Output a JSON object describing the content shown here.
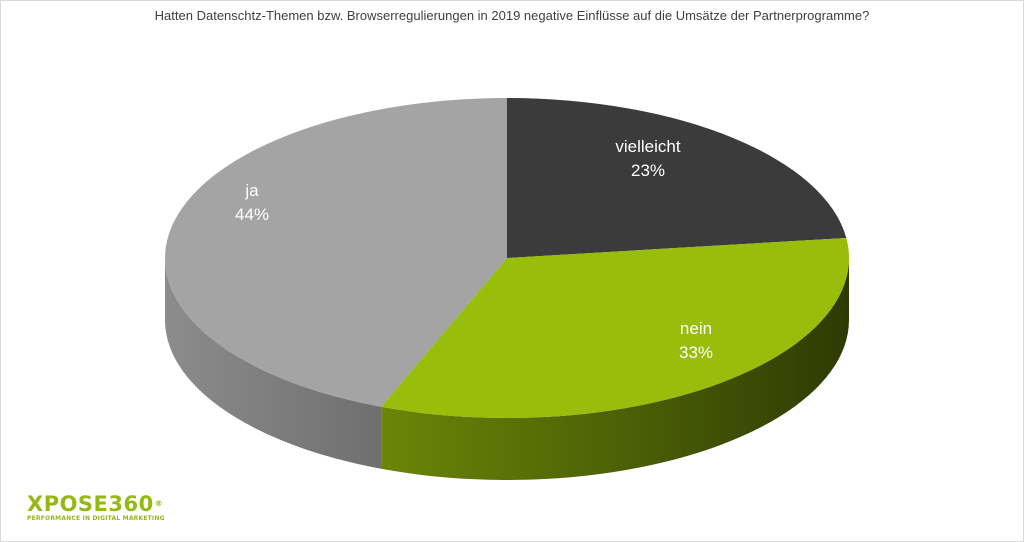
{
  "chart_data": {
    "type": "pie",
    "title": "Hatten Datenschtz-Themen bzw. Browserregulierungen in 2019 negative Einflüsse auf die Umsätze der Partnerprogramme?",
    "slices": [
      {
        "label": "vielleicht",
        "value": 23,
        "value_label": "23%",
        "color": "#3b3b3b",
        "side_color": "#262626"
      },
      {
        "label": "nein",
        "value": 33,
        "value_label": "33%",
        "color": "#98bd0a",
        "side_color": "#3e4d05"
      },
      {
        "label": "ja",
        "value": 44,
        "value_label": "44%",
        "color": "#a4a4a4",
        "side_color": "#858585"
      }
    ],
    "start": "top",
    "direction": "clockwise",
    "three_d": true
  },
  "logo": {
    "main": "XPOSE360",
    "registered": "®",
    "tagline": "PERFORMANCE IN DIGITAL MARKETING"
  }
}
